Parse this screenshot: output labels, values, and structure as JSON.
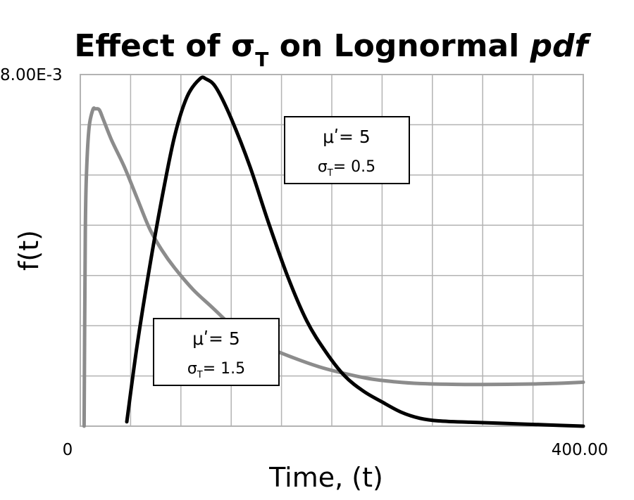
{
  "chart_data": {
    "type": "line",
    "title_parts": {
      "prefix": "Effect of σ",
      "subscript": "T",
      "middle": " on Lognormal ",
      "italic": "pdf"
    },
    "xlabel": "Time, (t)",
    "ylabel": "f(t)",
    "xlim": [
      0,
      400
    ],
    "ylim": [
      0,
      0.008
    ],
    "x_tick_labels": {
      "min": "0",
      "max": "400.00"
    },
    "y_tick_labels": {
      "max": "8.00E-3"
    },
    "grid": true,
    "grid_divisions": {
      "x": 10,
      "y": 7
    },
    "series": [
      {
        "id": "sigma-1.5",
        "color": "#8c8c8c",
        "points": [
          [
            3,
            0
          ],
          [
            4,
            0.0044
          ],
          [
            5,
            0.0058
          ],
          [
            7,
            0.0068
          ],
          [
            10,
            0.0072
          ],
          [
            12,
            0.00722
          ],
          [
            15,
            0.0072
          ],
          [
            18,
            0.007
          ],
          [
            25,
            0.0065
          ],
          [
            35,
            0.0059
          ],
          [
            45,
            0.0052
          ],
          [
            55,
            0.0045
          ],
          [
            65,
            0.004
          ],
          [
            75,
            0.0036
          ],
          [
            90,
            0.0031
          ],
          [
            105,
            0.0027
          ],
          [
            120,
            0.0023
          ],
          [
            135,
            0.002
          ],
          [
            150,
            0.00178
          ],
          [
            170,
            0.00155
          ],
          [
            190,
            0.00135
          ],
          [
            210,
            0.0012
          ],
          [
            230,
            0.00108
          ],
          [
            250,
            0.00101
          ],
          [
            270,
            0.00097
          ],
          [
            300,
            0.00095
          ],
          [
            330,
            0.00095
          ],
          [
            360,
            0.00096
          ],
          [
            385,
            0.00098
          ],
          [
            400,
            0.001
          ]
        ]
      },
      {
        "id": "sigma-0.5",
        "color": "#000000",
        "points": [
          [
            37,
            0.0001
          ],
          [
            45,
            0.0018
          ],
          [
            55,
            0.0036
          ],
          [
            65,
            0.0052
          ],
          [
            75,
            0.0066
          ],
          [
            85,
            0.0075
          ],
          [
            95,
            0.0079
          ],
          [
            100,
            0.0079
          ],
          [
            108,
            0.0077
          ],
          [
            120,
            0.007
          ],
          [
            135,
            0.0059
          ],
          [
            150,
            0.0046
          ],
          [
            165,
            0.0034
          ],
          [
            180,
            0.0024
          ],
          [
            195,
            0.0017
          ],
          [
            210,
            0.00115
          ],
          [
            225,
            0.0008
          ],
          [
            240,
            0.00055
          ],
          [
            255,
            0.00032
          ],
          [
            270,
            0.00018
          ],
          [
            285,
            0.00012
          ],
          [
            310,
            9e-05
          ],
          [
            340,
            6e-05
          ],
          [
            370,
            3e-05
          ],
          [
            400,
            0
          ]
        ]
      }
    ],
    "annotations": [
      {
        "id": "sigma-0.5-label",
        "line1": "μʹ= 5",
        "line2_symbol": "σ",
        "line2_sub": "T",
        "line2_value": "= 0.5"
      },
      {
        "id": "sigma-1.5-label",
        "line1": "μʹ= 5",
        "line2_symbol": "σ",
        "line2_sub": "T",
        "line2_value": "= 1.5"
      }
    ]
  }
}
